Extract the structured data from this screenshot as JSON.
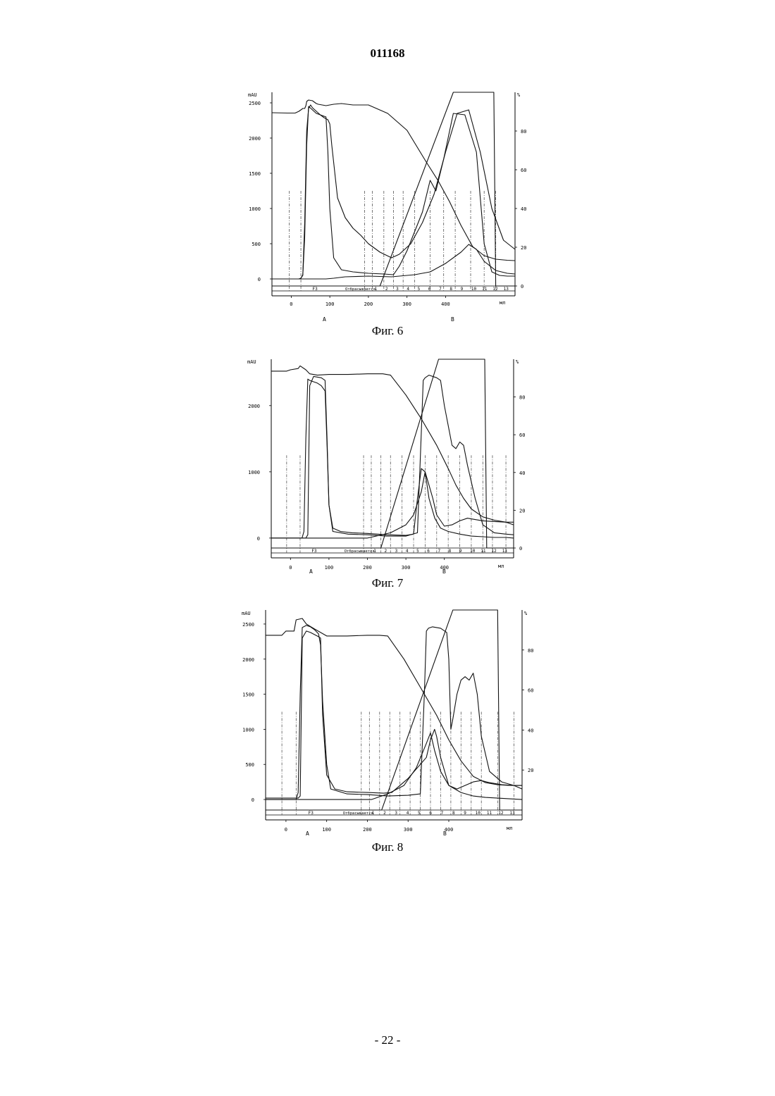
{
  "header": {
    "doc_number": "011168"
  },
  "footer": {
    "page_number": "- 22 -"
  },
  "chart_data": [
    {
      "type": "line",
      "caption": "Фиг. 6",
      "title": "",
      "y_left_unit": "mAU",
      "y_right_unit": "%",
      "x_unit": "мл",
      "xlim": [
        -50,
        580
      ],
      "ylim_left": [
        -100,
        2650
      ],
      "ylim_right": [
        0,
        100
      ],
      "x_ticks": [
        0,
        100,
        200,
        300,
        400
      ],
      "y_left_ticks": [
        0,
        500,
        1000,
        1500,
        2000,
        2500
      ],
      "y_right_ticks": [
        0,
        20,
        40,
        60,
        80
      ],
      "fraction_row_labels": [
        "F3",
        "Отбрасывается",
        "1",
        "2",
        "3",
        "4",
        "5",
        "6",
        "7",
        "8",
        "9",
        "10",
        "11",
        "12",
        "13"
      ],
      "region_labels": [
        "A",
        "B"
      ],
      "fraction_marks": [
        -5,
        25,
        190,
        210,
        240,
        265,
        290,
        320,
        360,
        395,
        425,
        465,
        500,
        530
      ],
      "series": [
        {
          "axis": "left",
          "x": [
            -50,
            -10,
            10,
            20,
            30,
            35,
            38,
            40,
            45,
            55,
            60,
            65,
            70,
            80,
            90,
            100,
            110,
            130,
            160,
            200,
            250,
            300,
            350,
            380,
            410,
            440,
            470,
            500,
            530,
            560,
            580
          ],
          "y": [
            2360,
            2355,
            2355,
            2380,
            2420,
            2420,
            2460,
            2520,
            2540,
            2530,
            2510,
            2490,
            2480,
            2470,
            2460,
            2470,
            2480,
            2490,
            2470,
            2470,
            2350,
            2110,
            1660,
            1400,
            1100,
            760,
            460,
            330,
            280,
            265,
            260
          ]
        },
        {
          "axis": "left",
          "x": [
            -50,
            20,
            25,
            30,
            35,
            40,
            45,
            50,
            55,
            65,
            75,
            85,
            95,
            100,
            105,
            120,
            140,
            160,
            180,
            200,
            230,
            260,
            280,
            310,
            340,
            370,
            400,
            430,
            460,
            490,
            520,
            550,
            580
          ],
          "y": [
            0,
            0,
            10,
            60,
            800,
            2100,
            2420,
            2470,
            2430,
            2380,
            2330,
            2290,
            2260,
            2200,
            1900,
            1150,
            870,
            720,
            620,
            500,
            380,
            300,
            350,
            500,
            800,
            1200,
            1800,
            2350,
            2400,
            1800,
            1000,
            550,
            420
          ]
        },
        {
          "axis": "left",
          "x": [
            -50,
            20,
            25,
            30,
            35,
            40,
            45,
            55,
            65,
            80,
            90,
            95,
            100,
            110,
            130,
            160,
            200,
            240,
            265,
            280,
            300,
            340,
            360,
            375,
            395,
            420,
            450,
            480,
            500,
            520,
            540,
            560,
            580
          ],
          "y": [
            0,
            0,
            10,
            50,
            600,
            1900,
            2450,
            2400,
            2350,
            2320,
            2300,
            1800,
            1000,
            300,
            130,
            100,
            80,
            70,
            60,
            180,
            400,
            950,
            1400,
            1250,
            1700,
            2350,
            2330,
            1800,
            500,
            100,
            50,
            40,
            40
          ]
        },
        {
          "axis": "left",
          "x": [
            -50,
            60,
            90,
            110,
            140,
            200,
            260,
            320,
            360,
            400,
            440,
            460,
            480,
            500,
            530,
            560,
            580
          ],
          "y": [
            0,
            0,
            0,
            10,
            30,
            40,
            30,
            60,
            100,
            220,
            380,
            490,
            420,
            250,
            120,
            80,
            70
          ]
        },
        {
          "axis": "right",
          "x": [
            -50,
            200,
            230,
            420,
            525,
            530,
            580
          ],
          "y": [
            0,
            0,
            0,
            100,
            100,
            0,
            0
          ]
        }
      ]
    },
    {
      "type": "line",
      "caption": "Фиг. 7",
      "title": "",
      "y_left_unit": "mAU",
      "y_right_unit": "%",
      "x_unit": "мл",
      "xlim": [
        -50,
        580
      ],
      "ylim_left": [
        -150,
        2700
      ],
      "ylim_right": [
        0,
        100
      ],
      "x_ticks": [
        0,
        100,
        200,
        300,
        400
      ],
      "y_left_ticks": [
        0,
        1000,
        2000
      ],
      "y_right_ticks": [
        0,
        20,
        40,
        60,
        80
      ],
      "fraction_row_labels": [
        "F3",
        "Отбрасывается",
        "1",
        "2",
        "3",
        "4",
        "5",
        "6",
        "7",
        "8",
        "9",
        "10",
        "11",
        "12",
        "13"
      ],
      "region_labels": [
        "A",
        "B"
      ],
      "fraction_marks": [
        -10,
        25,
        190,
        210,
        235,
        260,
        290,
        320,
        350,
        380,
        410,
        440,
        470,
        500,
        525,
        560
      ],
      "series": [
        {
          "axis": "left",
          "x": [
            -50,
            -10,
            0,
            20,
            25,
            40,
            50,
            70,
            100,
            150,
            200,
            240,
            260,
            300,
            340,
            380,
            410,
            430,
            450,
            470,
            500,
            530,
            560,
            580
          ],
          "y": [
            2520,
            2520,
            2540,
            2560,
            2600,
            2540,
            2480,
            2460,
            2470,
            2470,
            2480,
            2480,
            2460,
            2160,
            1800,
            1400,
            1050,
            800,
            600,
            440,
            320,
            270,
            240,
            200
          ]
        },
        {
          "axis": "left",
          "x": [
            -50,
            30,
            35,
            40,
            45,
            50,
            60,
            70,
            80,
            90,
            95,
            100,
            110,
            150,
            200,
            250,
            300,
            330,
            340,
            345,
            350,
            360,
            380,
            390,
            400,
            420,
            430,
            440,
            450,
            460,
            480,
            500,
            530,
            560,
            580
          ],
          "y": [
            0,
            0,
            100,
            1500,
            2400,
            2380,
            2360,
            2340,
            2300,
            2220,
            1400,
            500,
            100,
            60,
            50,
            30,
            30,
            80,
            1600,
            2380,
            2420,
            2460,
            2420,
            2380,
            2000,
            1400,
            1350,
            1450,
            1400,
            1100,
            600,
            200,
            80,
            60,
            50
          ]
        },
        {
          "axis": "left",
          "x": [
            -50,
            40,
            45,
            50,
            60,
            80,
            90,
            95,
            100,
            110,
            130,
            160,
            200,
            250,
            300,
            320,
            330,
            340,
            350,
            360,
            370,
            380,
            400,
            420,
            440,
            460,
            480,
            500,
            530,
            560,
            580
          ],
          "y": [
            0,
            0,
            50,
            2300,
            2440,
            2420,
            2380,
            1500,
            500,
            150,
            100,
            80,
            70,
            50,
            40,
            60,
            600,
            1050,
            1000,
            800,
            600,
            350,
            180,
            200,
            260,
            300,
            280,
            260,
            250,
            240,
            240
          ]
        },
        {
          "axis": "left",
          "x": [
            -50,
            200,
            260,
            300,
            320,
            340,
            350,
            360,
            375,
            390,
            410,
            440,
            470,
            500,
            530,
            560,
            580
          ],
          "y": [
            0,
            0,
            80,
            200,
            350,
            700,
            1000,
            600,
            300,
            150,
            100,
            60,
            30,
            20,
            10,
            10,
            0
          ]
        },
        {
          "axis": "right",
          "x": [
            -50,
            215,
            235,
            385,
            505,
            510,
            580
          ],
          "y": [
            0,
            0,
            0,
            100,
            100,
            0,
            0
          ]
        }
      ]
    },
    {
      "type": "line",
      "caption": "Фиг. 8",
      "title": "",
      "y_left_unit": "mAU",
      "y_right_unit": "%",
      "x_unit": "мл",
      "xlim": [
        -50,
        580
      ],
      "ylim_left": [
        -150,
        2700
      ],
      "ylim_right": [
        0,
        100
      ],
      "x_ticks": [
        0,
        100,
        200,
        300,
        400
      ],
      "y_left_ticks": [
        0,
        500,
        1000,
        1500,
        2000,
        2500
      ],
      "y_right_ticks": [
        20,
        40,
        60,
        80
      ],
      "fraction_row_labels": [
        "F3",
        "Отбрасывается",
        "1",
        "2",
        "3",
        "4",
        "5",
        "6",
        "7",
        "8",
        "9",
        "10",
        "11",
        "12",
        "13"
      ],
      "region_labels": [
        "A",
        "B"
      ],
      "fraction_marks": [
        -10,
        25,
        185,
        205,
        230,
        255,
        280,
        305,
        330,
        355,
        380,
        405,
        430,
        455,
        480,
        520,
        560
      ],
      "series": [
        {
          "axis": "left",
          "x": [
            -50,
            -10,
            0,
            20,
            25,
            40,
            50,
            70,
            100,
            150,
            200,
            230,
            250,
            290,
            330,
            370,
            400,
            430,
            460,
            490,
            520,
            550,
            580
          ],
          "y": [
            2340,
            2340,
            2400,
            2400,
            2560,
            2580,
            2500,
            2430,
            2330,
            2330,
            2340,
            2340,
            2330,
            2000,
            1600,
            1200,
            850,
            550,
            330,
            240,
            210,
            200,
            200
          ]
        },
        {
          "axis": "left",
          "x": [
            -50,
            25,
            30,
            35,
            40,
            50,
            60,
            70,
            80,
            85,
            90,
            100,
            110,
            150,
            200,
            250,
            300,
            330,
            340,
            345,
            350,
            360,
            380,
            395,
            400,
            405,
            410,
            420,
            430,
            440,
            450,
            460,
            470,
            480,
            500,
            530,
            560,
            580
          ],
          "y": [
            0,
            0,
            100,
            1500,
            2450,
            2480,
            2460,
            2420,
            2360,
            2200,
            1400,
            500,
            150,
            80,
            70,
            50,
            60,
            80,
            1500,
            2400,
            2440,
            2460,
            2440,
            2380,
            2000,
            1000,
            1150,
            1500,
            1700,
            1750,
            1700,
            1800,
            1500,
            900,
            400,
            250,
            200,
            150
          ]
        },
        {
          "axis": "left",
          "x": [
            -50,
            30,
            35,
            40,
            50,
            60,
            70,
            80,
            85,
            90,
            100,
            120,
            150,
            200,
            240,
            260,
            300,
            330,
            345,
            355,
            365,
            370,
            380,
            400,
            420,
            440,
            460,
            480,
            500,
            530,
            560,
            580
          ],
          "y": [
            20,
            20,
            50,
            2300,
            2400,
            2380,
            2350,
            2320,
            2300,
            1200,
            350,
            150,
            110,
            100,
            90,
            100,
            300,
            500,
            600,
            850,
            1000,
            900,
            600,
            200,
            150,
            200,
            250,
            270,
            240,
            210,
            200,
            200
          ]
        },
        {
          "axis": "left",
          "x": [
            -50,
            210,
            250,
            290,
            320,
            345,
            355,
            365,
            380,
            400,
            430,
            460,
            490,
            520,
            550,
            580
          ],
          "y": [
            0,
            0,
            80,
            200,
            450,
            800,
            950,
            700,
            400,
            200,
            100,
            50,
            30,
            20,
            10,
            0
          ]
        },
        {
          "axis": "right",
          "x": [
            -50,
            215,
            235,
            410,
            520,
            525,
            580
          ],
          "y": [
            0,
            0,
            0,
            100,
            100,
            0,
            0
          ]
        }
      ]
    }
  ]
}
